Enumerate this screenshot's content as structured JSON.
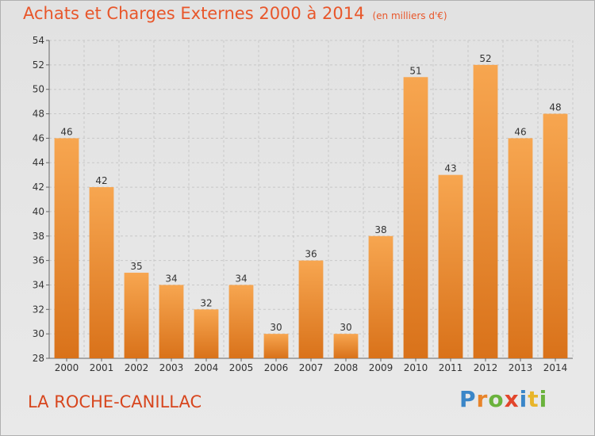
{
  "chart_data": {
    "type": "bar",
    "title": "Achats et Charges Externes 2000 à 2014",
    "subtitle": "(en milliers d'€)",
    "categories": [
      "2000",
      "2001",
      "2002",
      "2003",
      "2004",
      "2005",
      "2006",
      "2007",
      "2008",
      "2009",
      "2010",
      "2011",
      "2012",
      "2013",
      "2014"
    ],
    "values": [
      46,
      42,
      35,
      34,
      32,
      34,
      30,
      36,
      30,
      38,
      51,
      43,
      52,
      46,
      48
    ],
    "ylim": [
      28,
      54
    ],
    "yticks": [
      28,
      30,
      32,
      34,
      36,
      38,
      40,
      42,
      44,
      46,
      48,
      50,
      52,
      54
    ],
    "grid": true,
    "bar_color": "#f0862a"
  },
  "place_name": "LA ROCHE-CANILLAC",
  "logo": {
    "text": "Proxiti",
    "letters": [
      {
        "ch": "P",
        "color": "#3a86c8"
      },
      {
        "ch": "r",
        "color": "#e8842a"
      },
      {
        "ch": "o",
        "color": "#6ab23c"
      },
      {
        "ch": "x",
        "color": "#e2452b"
      },
      {
        "ch": "i",
        "color": "#3a86c8"
      },
      {
        "ch": "t",
        "color": "#e8b52a"
      },
      {
        "ch": "i",
        "color": "#6ab23c"
      }
    ]
  }
}
